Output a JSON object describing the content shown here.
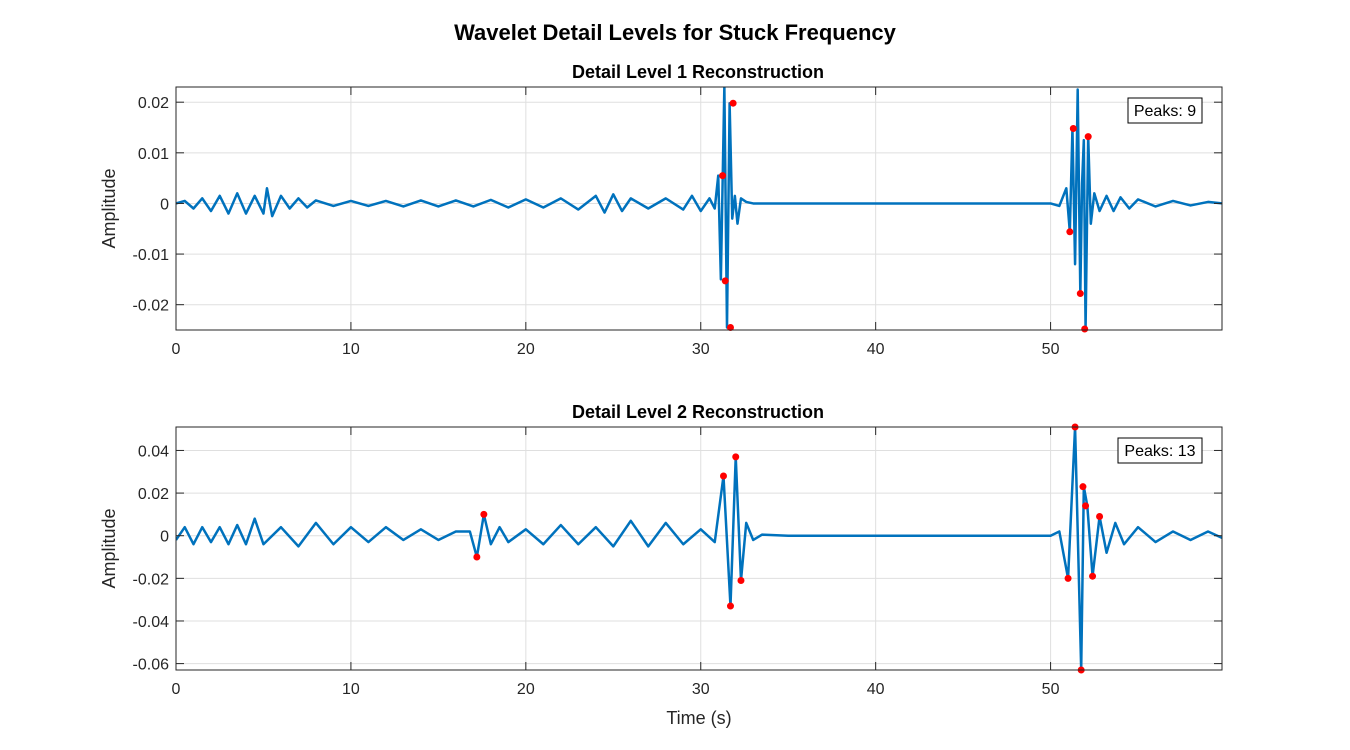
{
  "figure": {
    "title": "Wavelet Detail Levels for Stuck Frequency"
  },
  "colors": {
    "line": "#0072BD",
    "peaks": "#FF0000",
    "grid": "#DFDFDF",
    "axes": "#262626"
  },
  "chart_data": [
    {
      "type": "line",
      "title": "Detail Level 1 Reconstruction",
      "xlabel": "",
      "ylabel": "Amplitude",
      "xlim": [
        0,
        59.8
      ],
      "ylim": [
        -0.025,
        0.023
      ],
      "xticks": [
        0,
        10,
        20,
        30,
        40,
        50
      ],
      "xtick_labels": [
        "0",
        "10",
        "20",
        "30",
        "40",
        "50"
      ],
      "yticks": [
        0.02,
        0.01,
        0,
        -0.01,
        -0.02
      ],
      "ytick_labels": [
        "0.02",
        "0.01",
        "0",
        "-0.01",
        "-0.02"
      ],
      "grid": true,
      "peak_count_label": "Peaks: 9",
      "series": [
        {
          "x": [
            0,
            0.5,
            1.0,
            1.5,
            2.0,
            2.5,
            3.0,
            3.5,
            4.0,
            4.5,
            5.0,
            5.2,
            5.5,
            6.0,
            6.5,
            7.0,
            7.5,
            8.0,
            9.0,
            10.0,
            11.0,
            12.0,
            13.0,
            14.0,
            15.0,
            16.0,
            17.0,
            18.0,
            19.0,
            20.0,
            21.0,
            22.0,
            23.0,
            24.0,
            24.5,
            25.0,
            25.5,
            26.0,
            27.0,
            28.0,
            29.0,
            29.5,
            30.0,
            30.5,
            30.8,
            31.0,
            31.15,
            31.35,
            31.5,
            31.65,
            31.8,
            31.95,
            32.1,
            32.3,
            32.6,
            33.0,
            35.0,
            40.0,
            45.0,
            49.0,
            50.0,
            50.5,
            50.9,
            51.1,
            51.25,
            51.4,
            51.55,
            51.7,
            51.8,
            51.9,
            52.0,
            52.15,
            52.3,
            52.5,
            52.8,
            53.2,
            53.6,
            54.0,
            54.5,
            55.0,
            56.0,
            57.0,
            58.0,
            59.0,
            59.8
          ],
          "y": [
            0,
            0.0005,
            -0.001,
            0.001,
            -0.0015,
            0.0015,
            -0.002,
            0.002,
            -0.002,
            0.0015,
            -0.002,
            0.003,
            -0.0025,
            0.0015,
            -0.001,
            0.001,
            -0.0008,
            0.0006,
            -0.0005,
            0.0005,
            -0.0005,
            0.0005,
            -0.0006,
            0.0006,
            -0.0006,
            0.0006,
            -0.0006,
            0.0007,
            -0.0008,
            0.0008,
            -0.0008,
            0.001,
            -0.0012,
            0.0015,
            -0.0018,
            0.0018,
            -0.0015,
            0.001,
            -0.001,
            0.001,
            -0.0012,
            0.0015,
            -0.0015,
            0.001,
            -0.001,
            0.0055,
            -0.015,
            0.0232,
            -0.0245,
            0.0198,
            -0.003,
            0.0015,
            -0.004,
            0.001,
            0.0003,
            0,
            0,
            0,
            0,
            0,
            0,
            -0.0005,
            0.003,
            -0.0056,
            0.0148,
            -0.012,
            0.0225,
            -0.0178,
            0.004,
            0.0125,
            -0.0248,
            0.0132,
            -0.004,
            0.002,
            -0.0015,
            0.0015,
            -0.0015,
            0.0012,
            -0.001,
            0.0008,
            -0.0006,
            0.0005,
            -0.0004,
            0.0003,
            0
          ]
        }
      ],
      "peaks": {
        "x": [
          31.25,
          31.4,
          31.7,
          31.85,
          51.1,
          51.3,
          51.7,
          51.95,
          52.15
        ],
        "y": [
          0.0055,
          -0.0153,
          -0.0245,
          0.0198,
          -0.0056,
          0.0148,
          -0.0178,
          -0.0248,
          0.0132
        ]
      }
    },
    {
      "type": "line",
      "title": "Detail Level 2 Reconstruction",
      "xlabel": "Time (s)",
      "ylabel": "Amplitude",
      "xlim": [
        0,
        59.8
      ],
      "ylim": [
        -0.063,
        0.051
      ],
      "xticks": [
        0,
        10,
        20,
        30,
        40,
        50
      ],
      "xtick_labels": [
        "0",
        "10",
        "20",
        "30",
        "40",
        "50"
      ],
      "yticks": [
        0.04,
        0.02,
        0,
        -0.02,
        -0.04,
        -0.06
      ],
      "ytick_labels": [
        "0.04",
        "0.02",
        "0",
        "-0.02",
        "-0.04",
        "-0.06"
      ],
      "grid": true,
      "peak_count_label": "Peaks: 13",
      "series": [
        {
          "x": [
            0,
            0.5,
            1.0,
            1.5,
            2.0,
            2.5,
            3.0,
            3.5,
            4.0,
            4.5,
            5.0,
            6.0,
            7.0,
            8.0,
            9.0,
            10.0,
            11.0,
            12.0,
            13.0,
            14.0,
            15.0,
            16.0,
            16.8,
            17.2,
            17.6,
            18.0,
            18.5,
            19.0,
            20.0,
            21.0,
            22.0,
            23.0,
            24.0,
            25.0,
            26.0,
            27.0,
            28.0,
            29.0,
            30.0,
            30.8,
            31.3,
            31.7,
            32.0,
            32.3,
            32.6,
            33.0,
            33.5,
            35.0,
            40.0,
            45.0,
            50.0,
            50.5,
            51.0,
            51.4,
            51.75,
            51.9,
            52.1,
            52.4,
            52.8,
            53.2,
            53.7,
            54.2,
            55.0,
            56.0,
            57.0,
            58.0,
            59.0,
            59.8
          ],
          "y": [
            -0.002,
            0.004,
            -0.004,
            0.004,
            -0.003,
            0.004,
            -0.004,
            0.005,
            -0.004,
            0.008,
            -0.004,
            0.004,
            -0.005,
            0.006,
            -0.004,
            0.004,
            -0.003,
            0.004,
            -0.002,
            0.003,
            -0.002,
            0.002,
            0.002,
            -0.01,
            0.01,
            -0.004,
            0.004,
            -0.003,
            0.003,
            -0.004,
            0.005,
            -0.004,
            0.004,
            -0.005,
            0.007,
            -0.005,
            0.006,
            -0.004,
            0.003,
            -0.003,
            0.028,
            -0.033,
            0.037,
            -0.021,
            0.006,
            -0.002,
            0.0005,
            0,
            0,
            0,
            0,
            0.002,
            -0.02,
            0.051,
            -0.063,
            0.023,
            0.014,
            -0.019,
            0.009,
            -0.008,
            0.006,
            -0.004,
            0.004,
            -0.003,
            0.002,
            -0.002,
            0.002,
            -0.001
          ]
        }
      ],
      "peaks": {
        "x": [
          17.2,
          17.6,
          31.3,
          31.7,
          32.0,
          32.3,
          51.0,
          51.4,
          51.75,
          51.85,
          52.0,
          52.4,
          52.8
        ],
        "y": [
          -0.01,
          0.01,
          0.028,
          -0.033,
          0.037,
          -0.021,
          -0.02,
          0.051,
          -0.063,
          0.023,
          0.014,
          -0.019,
          0.009
        ]
      }
    }
  ]
}
